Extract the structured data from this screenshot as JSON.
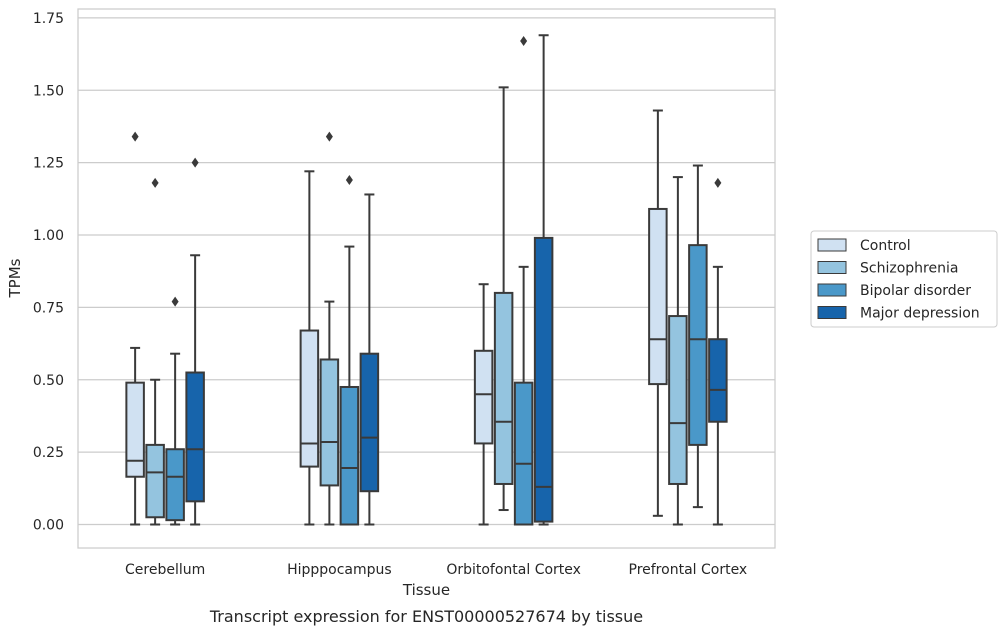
{
  "chart_data": {
    "type": "boxplot",
    "caption": "Transcript expression for ENST00000527674 by tissue",
    "xlabel": "Tissue",
    "ylabel": "TPMs",
    "ylim": [
      -0.08,
      1.76
    ],
    "yticks": [
      0.0,
      0.25,
      0.5,
      0.75,
      1.0,
      1.25,
      1.5,
      1.75
    ],
    "ytick_labels": [
      "0.00",
      "0.25",
      "0.50",
      "0.75",
      "1.00",
      "1.25",
      "1.50",
      "1.75"
    ],
    "grid": "horizontal",
    "legend_position": "right",
    "categories": [
      "Cerebellum",
      "Hipppocampus",
      "Orbitofontal Cortex",
      "Prefrontal Cortex"
    ],
    "series": [
      {
        "name": "Control",
        "color": "#d0e1f2",
        "boxes": [
          {
            "whislo": 0.0,
            "q1": 0.165,
            "med": 0.22,
            "q3": 0.49,
            "whishi": 0.61,
            "fliers": [
              1.34
            ]
          },
          {
            "whislo": 0.0,
            "q1": 0.2,
            "med": 0.28,
            "q3": 0.67,
            "whishi": 1.22,
            "fliers": []
          },
          {
            "whislo": 0.0,
            "q1": 0.28,
            "med": 0.45,
            "q3": 0.6,
            "whishi": 0.83,
            "fliers": []
          },
          {
            "whislo": 0.03,
            "q1": 0.485,
            "med": 0.64,
            "q3": 1.09,
            "whishi": 1.43,
            "fliers": []
          }
        ]
      },
      {
        "name": "Schizophrenia",
        "color": "#94c4df",
        "boxes": [
          {
            "whislo": 0.0,
            "q1": 0.025,
            "med": 0.18,
            "q3": 0.275,
            "whishi": 0.5,
            "fliers": [
              1.18
            ]
          },
          {
            "whislo": 0.0,
            "q1": 0.135,
            "med": 0.285,
            "q3": 0.57,
            "whishi": 0.77,
            "fliers": [
              1.34
            ]
          },
          {
            "whislo": 0.05,
            "q1": 0.14,
            "med": 0.355,
            "q3": 0.8,
            "whishi": 1.51,
            "fliers": []
          },
          {
            "whislo": 0.0,
            "q1": 0.14,
            "med": 0.35,
            "q3": 0.72,
            "whishi": 1.2,
            "fliers": []
          }
        ]
      },
      {
        "name": "Bipolar disorder",
        "color": "#4a98c9",
        "boxes": [
          {
            "whislo": 0.0,
            "q1": 0.015,
            "med": 0.165,
            "q3": 0.26,
            "whishi": 0.59,
            "fliers": [
              0.77
            ]
          },
          {
            "whislo": 0.0,
            "q1": 0.0,
            "med": 0.195,
            "q3": 0.475,
            "whishi": 0.96,
            "fliers": [
              1.19
            ]
          },
          {
            "whislo": 0.0,
            "q1": 0.0,
            "med": 0.21,
            "q3": 0.49,
            "whishi": 0.89,
            "fliers": [
              1.67
            ]
          },
          {
            "whislo": 0.06,
            "q1": 0.275,
            "med": 0.64,
            "q3": 0.965,
            "whishi": 1.24,
            "fliers": []
          }
        ]
      },
      {
        "name": "Major depression",
        "color": "#1764ab",
        "boxes": [
          {
            "whislo": 0.0,
            "q1": 0.08,
            "med": 0.26,
            "q3": 0.525,
            "whishi": 0.93,
            "fliers": [
              1.25
            ]
          },
          {
            "whislo": 0.0,
            "q1": 0.115,
            "med": 0.3,
            "q3": 0.59,
            "whishi": 1.14,
            "fliers": []
          },
          {
            "whislo": 0.0,
            "q1": 0.01,
            "med": 0.13,
            "q3": 0.99,
            "whishi": 1.69,
            "fliers": []
          },
          {
            "whislo": 0.0,
            "q1": 0.355,
            "med": 0.465,
            "q3": 0.64,
            "whishi": 0.89,
            "fliers": [
              1.18
            ]
          }
        ]
      }
    ]
  }
}
